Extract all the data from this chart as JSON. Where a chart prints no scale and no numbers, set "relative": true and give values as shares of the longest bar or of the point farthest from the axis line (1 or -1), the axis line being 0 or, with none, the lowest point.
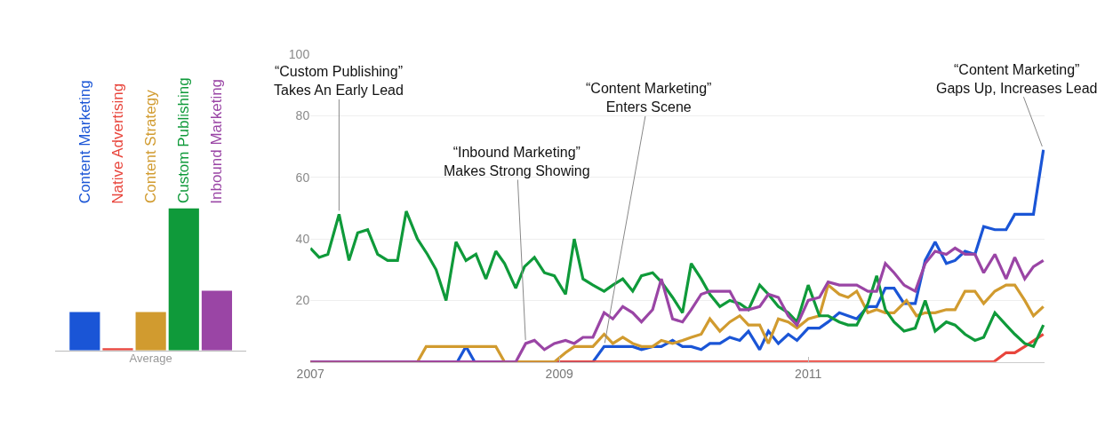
{
  "chart_data": [
    {
      "type": "bar",
      "xlabel": "Average",
      "relative": true,
      "categories": [
        "Content Marketing",
        "Native Advertising",
        "Content Strategy",
        "Custom Publishing",
        "Inbound Marketing"
      ],
      "values": [
        0.27,
        0.015,
        0.27,
        1,
        0.42
      ],
      "colors": [
        "#1a55d6",
        "#e8453c",
        "#d19b2f",
        "#0f9a3a",
        "#9a45a5"
      ]
    },
    {
      "type": "line",
      "xlim": [
        2007,
        2012.9
      ],
      "xticks": [
        2007,
        2009,
        2011
      ],
      "ylim": [
        0,
        100
      ],
      "yticks": [
        20,
        40,
        60,
        80,
        100
      ],
      "grid": "y",
      "series": [
        {
          "color": "#1a55d6",
          "x": [
            2007.0,
            2008.18,
            2008.25,
            2008.32,
            2009.27,
            2009.36,
            2009.43,
            2009.51,
            2009.59,
            2009.66,
            2009.75,
            2009.82,
            2009.91,
            2009.99,
            2010.06,
            2010.14,
            2010.21,
            2010.29,
            2010.37,
            2010.45,
            2010.52,
            2010.61,
            2010.68,
            2010.76,
            2010.84,
            2010.91,
            2011.0,
            2011.09,
            2011.16,
            2011.25,
            2011.32,
            2011.39,
            2011.48,
            2011.55,
            2011.62,
            2011.69,
            2011.77,
            2011.86,
            2011.94,
            2012.02,
            2012.11,
            2012.18,
            2012.26,
            2012.34,
            2012.41,
            2012.5,
            2012.59,
            2012.66,
            2012.74,
            2012.81,
            2012.89
          ],
          "values": [
            0,
            0,
            5,
            0,
            0,
            5,
            5,
            5,
            5,
            4,
            5,
            5,
            7,
            5,
            5,
            4,
            6,
            6,
            8,
            7,
            10,
            4,
            10,
            6,
            9,
            7,
            11,
            11,
            13,
            16,
            15,
            14,
            18,
            18,
            24,
            24,
            19,
            19,
            33,
            39,
            32,
            33,
            36,
            35,
            44,
            43,
            43,
            48,
            48,
            48,
            69
          ]
        },
        {
          "color": "#e8453c",
          "x": [
            2007.0,
            2012.49,
            2012.59,
            2012.66,
            2012.74,
            2012.89
          ],
          "values": [
            0,
            0,
            3,
            3,
            5,
            9
          ]
        },
        {
          "color": "#d19b2f",
          "x": [
            2007.0,
            2007.86,
            2007.93,
            2008.49,
            2008.56,
            2008.96,
            2009.05,
            2009.12,
            2009.19,
            2009.27,
            2009.36,
            2009.43,
            2009.51,
            2009.59,
            2009.66,
            2009.75,
            2009.82,
            2009.91,
            2009.99,
            2010.06,
            2010.14,
            2010.21,
            2010.29,
            2010.37,
            2010.45,
            2010.52,
            2010.61,
            2010.68,
            2010.76,
            2010.84,
            2010.91,
            2011.0,
            2011.09,
            2011.16,
            2011.25,
            2011.32,
            2011.39,
            2011.48,
            2011.55,
            2011.62,
            2011.69,
            2011.79,
            2011.87,
            2011.94,
            2012.02,
            2012.11,
            2012.18,
            2012.26,
            2012.34,
            2012.41,
            2012.5,
            2012.59,
            2012.66,
            2012.74,
            2012.81,
            2012.89
          ],
          "values": [
            0,
            0,
            5,
            5,
            0,
            0,
            3,
            5,
            5,
            5,
            9,
            6,
            8,
            6,
            5,
            5,
            7,
            6,
            7,
            8,
            9,
            14,
            10,
            13,
            15,
            12,
            12,
            6,
            14,
            13,
            11,
            14,
            15,
            25,
            22,
            21,
            23,
            16,
            17,
            16,
            16,
            20,
            15,
            16,
            16,
            17,
            17,
            23,
            23,
            19,
            23,
            25,
            25,
            20,
            15,
            18
          ]
        },
        {
          "color": "#0f9a3a",
          "x": [
            2007.0,
            2007.07,
            2007.14,
            2007.23,
            2007.31,
            2007.38,
            2007.46,
            2007.54,
            2007.62,
            2007.7,
            2007.77,
            2007.86,
            2007.94,
            2008.01,
            2008.09,
            2008.17,
            2008.25,
            2008.33,
            2008.41,
            2008.49,
            2008.56,
            2008.65,
            2008.72,
            2008.8,
            2008.88,
            2008.96,
            2009.05,
            2009.12,
            2009.19,
            2009.27,
            2009.36,
            2009.43,
            2009.51,
            2009.59,
            2009.66,
            2009.75,
            2009.82,
            2009.91,
            2009.99,
            2010.06,
            2010.14,
            2010.21,
            2010.29,
            2010.37,
            2010.45,
            2010.52,
            2010.61,
            2010.68,
            2010.76,
            2010.84,
            2010.91,
            2011.0,
            2011.09,
            2011.16,
            2011.25,
            2011.32,
            2011.39,
            2011.48,
            2011.55,
            2011.62,
            2011.69,
            2011.77,
            2011.86,
            2011.94,
            2012.02,
            2012.11,
            2012.18,
            2012.26,
            2012.34,
            2012.41,
            2012.5,
            2012.59,
            2012.66,
            2012.74,
            2012.81,
            2012.89
          ],
          "values": [
            37,
            34,
            35,
            48,
            33,
            42,
            43,
            35,
            33,
            33,
            49,
            40,
            35,
            30,
            20,
            39,
            33,
            35,
            27,
            36,
            32,
            24,
            31,
            34,
            29,
            28,
            22,
            40,
            27,
            25,
            23,
            25,
            27,
            23,
            28,
            29,
            26,
            21,
            16,
            32,
            27,
            22,
            18,
            20,
            19,
            17,
            25,
            22,
            18,
            16,
            13,
            25,
            15,
            15,
            13,
            12,
            12,
            19,
            28,
            17,
            13,
            10,
            11,
            20,
            10,
            13,
            12,
            9,
            7,
            8,
            16,
            12,
            9,
            6,
            5,
            12
          ]
        },
        {
          "color": "#9a45a5",
          "x": [
            2007.0,
            2008.65,
            2008.73,
            2008.8,
            2008.88,
            2008.96,
            2009.05,
            2009.12,
            2009.19,
            2009.27,
            2009.36,
            2009.43,
            2009.51,
            2009.59,
            2009.66,
            2009.75,
            2009.82,
            2009.91,
            2009.99,
            2010.06,
            2010.14,
            2010.21,
            2010.29,
            2010.37,
            2010.45,
            2010.52,
            2010.61,
            2010.68,
            2010.76,
            2010.84,
            2010.91,
            2011.0,
            2011.09,
            2011.16,
            2011.25,
            2011.32,
            2011.39,
            2011.48,
            2011.55,
            2011.62,
            2011.69,
            2011.77,
            2011.86,
            2011.94,
            2012.02,
            2012.11,
            2012.18,
            2012.26,
            2012.34,
            2012.41,
            2012.5,
            2012.59,
            2012.66,
            2012.74,
            2012.81,
            2012.89
          ],
          "values": [
            0,
            0,
            6,
            7,
            4,
            6,
            7,
            6,
            8,
            8,
            16,
            14,
            18,
            16,
            13,
            17,
            27,
            14,
            13,
            17,
            22,
            23,
            23,
            23,
            17,
            17,
            18,
            22,
            21,
            15,
            12,
            20,
            21,
            26,
            25,
            25,
            25,
            23,
            23,
            32,
            29,
            25,
            23,
            32,
            36,
            35,
            37,
            35,
            35,
            29,
            35,
            27,
            34,
            27,
            31,
            33
          ]
        }
      ],
      "annotations": [
        {
          "text": "“Custom Publishing”\nTakes An Early Lead",
          "x": 2007.23,
          "y": 48
        },
        {
          "text": "“Inbound Marketing”\nMakes Strong Showing",
          "x": 2008.73,
          "y": 6
        },
        {
          "text": "“Content Marketing”\nEnters Scene",
          "x": 2009.36,
          "y": 5
        },
        {
          "text": "“Content Marketing”\nGaps Up, Increases Lead",
          "x": 2012.89,
          "y": 69
        }
      ]
    }
  ]
}
